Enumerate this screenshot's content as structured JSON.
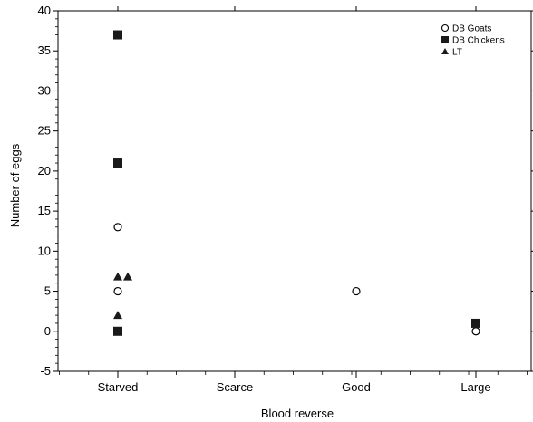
{
  "chart_data": {
    "type": "scatter",
    "xlabel": "Blood reverse",
    "ylabel": "Number of eggs",
    "categories": [
      "Starved",
      "Scarce",
      "Good",
      "Large"
    ],
    "ylim": [
      -5,
      40
    ],
    "yticks": [
      -5,
      0,
      5,
      10,
      15,
      20,
      25,
      30,
      35,
      40
    ],
    "grid": false,
    "legend_position": "top-right",
    "series": [
      {
        "name": "DB Goats",
        "marker": "open-circle",
        "points": [
          {
            "category": "Starved",
            "y": 13
          },
          {
            "category": "Starved",
            "y": 5
          },
          {
            "category": "Good",
            "y": 5
          },
          {
            "category": "Large",
            "y": 0
          }
        ]
      },
      {
        "name": "DB Chickens",
        "marker": "filled-square",
        "points": [
          {
            "category": "Starved",
            "y": 37
          },
          {
            "category": "Starved",
            "y": 21
          },
          {
            "category": "Starved",
            "y": 0
          },
          {
            "category": "Large",
            "y": 1
          }
        ]
      },
      {
        "name": "LT",
        "marker": "filled-triangle",
        "points": [
          {
            "category": "Starved",
            "y": 6.8
          },
          {
            "category": "Starved",
            "y": 6.8
          },
          {
            "category": "Starved",
            "y": 2
          }
        ]
      }
    ]
  }
}
